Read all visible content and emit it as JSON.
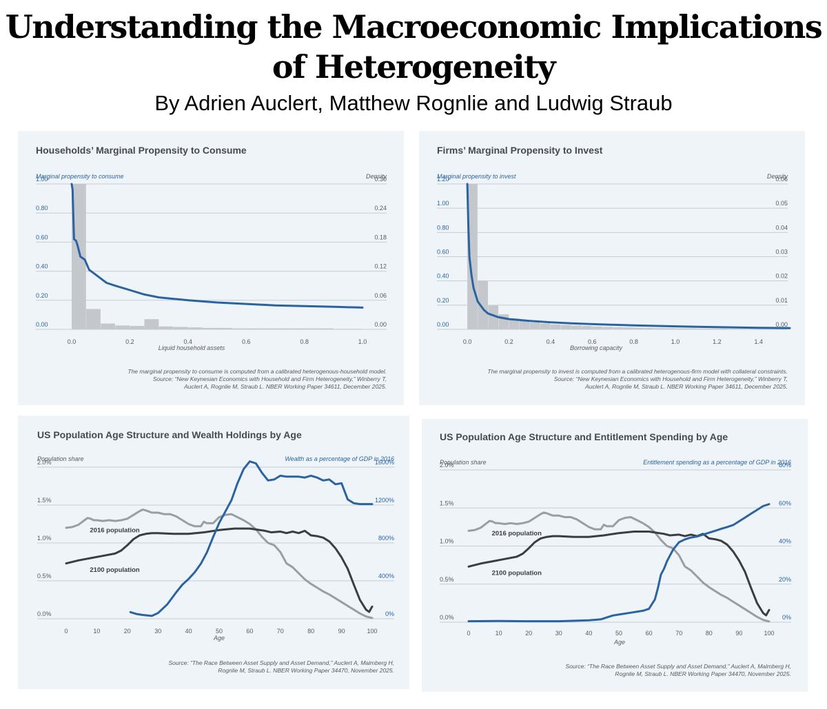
{
  "header": {
    "title": "Understanding the Macroeconomic Implications of Heterogeneity",
    "subtitle": "By Adrien Auclert, Matthew Rognlie and Ludwig Straub"
  },
  "colors": {
    "blue": "#2a63a0",
    "bar": "#c4c7cc",
    "dark": "#3a3d42",
    "light": "#9a9ea3",
    "grid": "#c5ccd4",
    "text": "#555a60"
  },
  "panels": [
    {
      "title": "Households’ Marginal Propensity to Consume",
      "left_axis_label": "Marginal propensity to consume",
      "right_axis_label": "Density",
      "xlabel": "Liquid household assets",
      "note": "The marginal propensity to consume is computed from a calibrated heterogenous-household model.",
      "source": [
        "Source: “New Keynesian Economics with Household and Firm Heterogeneity,” Winberry T,",
        "Auclert A, Rognlie M, Straub L. NBER Working Paper 34611, December 2025."
      ]
    },
    {
      "title": "Firms’ Marginal Propensity to Invest",
      "left_axis_label": "Marginal propensity to invest",
      "right_axis_label": "Density",
      "xlabel": "Borrowing capacity",
      "note": "The marginal propensity to invest is computed from a calibrated heterogenous-firm model with collateral constraints.",
      "source": [
        "Source: “New Keynesian Economics with Household and Firm Heterogeneity,” Winberry T,",
        "Auclert A, Rognlie M, Straub L. NBER Working Paper 34611, December 2025."
      ]
    },
    {
      "title": "US Population Age Structure and Wealth Holdings by Age",
      "left_axis_label": "Population share",
      "right_axis_label": "Wealth as a percentage of GDP in 2016",
      "xlabel": "Age",
      "note": "",
      "source": [
        "Source: “The Race Between Asset Supply and Asset Demand,” Auclert A, Malmberg H,",
        "Rognlie M, Straub L. NBER Working Paper 34470, November 2025."
      ]
    },
    {
      "title": "US Population Age Structure and Entitlement Spending by Age",
      "left_axis_label": "Population share",
      "right_axis_label": "Entitlement spending as a percentage of GDP in 2016",
      "xlabel": "Age",
      "note": "",
      "source": [
        "Source: “The Race Between Asset Supply and Asset Demand,” Auclert A, Malmberg H,",
        "Rognlie M, Straub L. NBER Working Paper 34470, November 2025."
      ]
    }
  ],
  "chart_data": [
    {
      "type": "bar",
      "title": "Households’ Marginal Propensity to Consume",
      "xlabel": "Liquid household assets",
      "xlim": [
        0,
        1.0
      ],
      "x_ticks": [
        "0.0",
        "0.2",
        "0.4",
        "0.6",
        "0.8",
        "1.0"
      ],
      "y_left": {
        "label": "Marginal propensity to consume",
        "lim": [
          0,
          1.0
        ],
        "ticks": [
          "0.00",
          "0.20",
          "0.40",
          "0.60",
          "0.80",
          "1.00"
        ]
      },
      "y_right": {
        "label": "Density",
        "lim": [
          0,
          0.3
        ],
        "ticks": [
          "0.00",
          "0.06",
          "0.12",
          "0.18",
          "0.24",
          "0.30"
        ]
      },
      "grid": true,
      "histogram": {
        "name": "Density",
        "bin_width": 0.05,
        "values": [
          0.3,
          0.042,
          0.012,
          0.008,
          0.007,
          0.021,
          0.006,
          0.005,
          0.004,
          0.003,
          0.003,
          0.002,
          0.002,
          0.002,
          0.002,
          0.002,
          0.002,
          0.002,
          0.001,
          0.001
        ]
      },
      "series": [
        {
          "name": "Marginal propensity to consume",
          "x": [
            0.0,
            0.003,
            0.008,
            0.015,
            0.02,
            0.03,
            0.045,
            0.06,
            0.08,
            0.1,
            0.12,
            0.15,
            0.2,
            0.25,
            0.3,
            0.35,
            0.4,
            0.5,
            0.6,
            0.7,
            0.8,
            0.9,
            1.0
          ],
          "y": [
            1.0,
            0.96,
            0.62,
            0.61,
            0.58,
            0.5,
            0.48,
            0.41,
            0.38,
            0.35,
            0.32,
            0.3,
            0.27,
            0.24,
            0.22,
            0.21,
            0.2,
            0.185,
            0.175,
            0.165,
            0.16,
            0.155,
            0.15
          ]
        }
      ]
    },
    {
      "type": "bar",
      "title": "Firms’ Marginal Propensity to Invest",
      "xlabel": "Borrowing capacity",
      "xlim": [
        -0.05,
        1.55
      ],
      "x_ticks": [
        "0.0",
        "0.2",
        "0.4",
        "0.6",
        "0.8",
        "1.0",
        "1.2",
        "1.4"
      ],
      "y_left": {
        "label": "Marginal propensity to invest",
        "lim": [
          0,
          1.2
        ],
        "ticks": [
          "0.00",
          "0.20",
          "0.40",
          "0.60",
          "0.80",
          "1.00",
          "1.20"
        ]
      },
      "y_right": {
        "label": "Density",
        "lim": [
          0,
          0.06
        ],
        "ticks": [
          "0.00",
          "0.01",
          "0.02",
          "0.03",
          "0.04",
          "0.05",
          "0.06"
        ]
      },
      "grid": true,
      "histogram": {
        "name": "Density",
        "bin_width": 0.05,
        "values": [
          0.06,
          0.02,
          0.0098,
          0.0062,
          0.0045,
          0.0035,
          0.0028,
          0.0024,
          0.002,
          0.0018,
          0.0016,
          0.0014,
          0.0012,
          0.001,
          0.0009,
          0.0008,
          0.0007,
          0.0006,
          0.0005,
          0.0005,
          0.0004,
          0.0004,
          0.0003,
          0.0003,
          0.0003,
          0.0002,
          0.0002,
          0.0002,
          0.0002,
          0.0002,
          0.0001
        ]
      },
      "series": [
        {
          "name": "Marginal propensity to invest",
          "x": [
            0.0,
            0.005,
            0.01,
            0.02,
            0.03,
            0.05,
            0.08,
            0.1,
            0.15,
            0.2,
            0.3,
            0.4,
            0.5,
            0.6,
            0.8,
            1.0,
            1.2,
            1.4,
            1.55
          ],
          "y": [
            1.2,
            0.85,
            0.6,
            0.45,
            0.34,
            0.23,
            0.16,
            0.13,
            0.1,
            0.085,
            0.07,
            0.058,
            0.05,
            0.043,
            0.033,
            0.025,
            0.018,
            0.013,
            0.01
          ]
        }
      ]
    },
    {
      "type": "line",
      "title": "US Population Age Structure and Wealth Holdings by Age",
      "xlabel": "Age",
      "xlim": [
        0,
        100
      ],
      "x_ticks": [
        "0",
        "10",
        "20",
        "30",
        "40",
        "50",
        "60",
        "70",
        "80",
        "90",
        "100"
      ],
      "y_left": {
        "label": "Population share",
        "lim": [
          0,
          2.0
        ],
        "ticks": [
          "0.0%",
          "0.5%",
          "1.0%",
          "1.5%",
          "2.0%"
        ]
      },
      "y_right": {
        "label": "Wealth as a percentage of GDP in 2016",
        "lim": [
          0,
          1600
        ],
        "ticks": [
          "0%",
          "400%",
          "800%",
          "1200%",
          "1600%"
        ]
      },
      "grid": true,
      "annotations": [
        "2016 population",
        "2100 population"
      ],
      "series": [
        {
          "name": "2016 population",
          "axis": "left",
          "x": [
            0,
            2,
            4,
            6,
            7,
            8,
            9,
            10,
            12,
            14,
            16,
            18,
            20,
            22,
            24,
            25,
            26,
            28,
            30,
            32,
            34,
            36,
            38,
            40,
            42,
            44,
            45,
            46,
            48,
            50,
            52,
            54,
            56,
            58,
            60,
            62,
            64,
            66,
            68,
            70,
            72,
            74,
            76,
            78,
            80,
            82,
            84,
            86,
            88,
            90,
            92,
            94,
            96,
            98,
            100
          ],
          "y": [
            1.2,
            1.21,
            1.24,
            1.3,
            1.33,
            1.32,
            1.3,
            1.3,
            1.29,
            1.3,
            1.29,
            1.3,
            1.32,
            1.37,
            1.42,
            1.44,
            1.43,
            1.4,
            1.4,
            1.38,
            1.38,
            1.35,
            1.3,
            1.25,
            1.22,
            1.22,
            1.28,
            1.26,
            1.26,
            1.34,
            1.37,
            1.38,
            1.34,
            1.3,
            1.25,
            1.18,
            1.08,
            1.0,
            0.97,
            0.88,
            0.73,
            0.68,
            0.6,
            0.52,
            0.46,
            0.41,
            0.36,
            0.32,
            0.27,
            0.22,
            0.17,
            0.12,
            0.07,
            0.03,
            0.01
          ]
        },
        {
          "name": "2100 population",
          "axis": "left",
          "x": [
            0,
            4,
            8,
            12,
            16,
            18,
            20,
            22,
            24,
            26,
            28,
            30,
            35,
            40,
            45,
            50,
            55,
            60,
            65,
            67,
            70,
            72,
            74,
            76,
            78,
            80,
            82,
            84,
            86,
            88,
            90,
            92,
            94,
            96,
            98,
            99,
            100
          ],
          "y": [
            0.73,
            0.77,
            0.8,
            0.83,
            0.86,
            0.9,
            0.97,
            1.05,
            1.1,
            1.12,
            1.13,
            1.13,
            1.12,
            1.12,
            1.14,
            1.17,
            1.19,
            1.19,
            1.16,
            1.14,
            1.15,
            1.13,
            1.15,
            1.13,
            1.16,
            1.1,
            1.09,
            1.07,
            1.02,
            0.93,
            0.81,
            0.66,
            0.45,
            0.25,
            0.12,
            0.09,
            0.16
          ]
        },
        {
          "name": "Wealth",
          "axis": "right",
          "x": [
            21,
            23,
            25,
            28,
            30,
            33,
            36,
            38,
            40,
            42,
            44,
            46,
            48,
            50,
            52,
            54,
            56,
            58,
            60,
            62,
            64,
            66,
            68,
            70,
            72,
            74,
            76,
            78,
            80,
            82,
            84,
            86,
            88,
            90,
            92,
            94,
            96,
            98,
            100
          ],
          "y": [
            70,
            50,
            40,
            30,
            60,
            150,
            280,
            360,
            420,
            490,
            580,
            700,
            860,
            1010,
            1130,
            1250,
            1430,
            1580,
            1660,
            1640,
            1540,
            1460,
            1470,
            1510,
            1500,
            1500,
            1500,
            1490,
            1510,
            1490,
            1460,
            1470,
            1420,
            1430,
            1260,
            1220,
            1210,
            1210,
            1210
          ]
        }
      ]
    },
    {
      "type": "line",
      "title": "US Population Age Structure and Entitlement Spending by Age",
      "xlabel": "Age",
      "xlim": [
        0,
        100
      ],
      "x_ticks": [
        "0",
        "10",
        "20",
        "30",
        "40",
        "50",
        "60",
        "70",
        "80",
        "90",
        "100"
      ],
      "y_left": {
        "label": "Population share",
        "lim": [
          0,
          2.0
        ],
        "ticks": [
          "0.0%",
          "0.5%",
          "1.0%",
          "1.5%",
          "2.0%"
        ]
      },
      "y_right": {
        "label": "Entitlement spending as a percentage of GDP in 2016",
        "lim": [
          0,
          80
        ],
        "ticks": [
          "0%",
          "20%",
          "40%",
          "60%",
          "80%"
        ]
      },
      "grid": true,
      "annotations": [
        "2016 population",
        "2100 population"
      ],
      "series": [
        {
          "name": "2016 population",
          "axis": "left",
          "x": [
            0,
            2,
            4,
            6,
            7,
            8,
            9,
            10,
            12,
            14,
            16,
            18,
            20,
            22,
            24,
            25,
            26,
            28,
            30,
            32,
            34,
            36,
            38,
            40,
            42,
            44,
            45,
            46,
            48,
            50,
            52,
            54,
            56,
            58,
            60,
            62,
            64,
            66,
            68,
            70,
            72,
            74,
            76,
            78,
            80,
            82,
            84,
            86,
            88,
            90,
            92,
            94,
            96,
            98,
            100
          ],
          "y": [
            1.2,
            1.21,
            1.24,
            1.3,
            1.33,
            1.32,
            1.3,
            1.3,
            1.29,
            1.3,
            1.29,
            1.3,
            1.32,
            1.37,
            1.42,
            1.44,
            1.43,
            1.4,
            1.4,
            1.38,
            1.38,
            1.35,
            1.3,
            1.25,
            1.22,
            1.22,
            1.28,
            1.26,
            1.26,
            1.34,
            1.37,
            1.38,
            1.34,
            1.3,
            1.25,
            1.18,
            1.08,
            1.0,
            0.97,
            0.88,
            0.73,
            0.68,
            0.6,
            0.52,
            0.46,
            0.41,
            0.36,
            0.32,
            0.27,
            0.22,
            0.17,
            0.12,
            0.07,
            0.03,
            0.01
          ]
        },
        {
          "name": "2100 population",
          "axis": "left",
          "x": [
            0,
            4,
            8,
            12,
            16,
            18,
            20,
            22,
            24,
            26,
            28,
            30,
            35,
            40,
            45,
            50,
            55,
            60,
            65,
            67,
            70,
            72,
            74,
            76,
            78,
            80,
            82,
            84,
            86,
            88,
            90,
            92,
            94,
            96,
            98,
            99,
            100
          ],
          "y": [
            0.73,
            0.77,
            0.8,
            0.83,
            0.86,
            0.9,
            0.97,
            1.05,
            1.1,
            1.12,
            1.13,
            1.13,
            1.12,
            1.12,
            1.14,
            1.17,
            1.19,
            1.19,
            1.16,
            1.14,
            1.15,
            1.13,
            1.15,
            1.13,
            1.16,
            1.1,
            1.09,
            1.07,
            1.02,
            0.93,
            0.81,
            0.66,
            0.45,
            0.25,
            0.12,
            0.09,
            0.16
          ]
        },
        {
          "name": "Entitlement spending",
          "axis": "right",
          "x": [
            0,
            10,
            20,
            30,
            40,
            44,
            46,
            48,
            50,
            54,
            58,
            60,
            62,
            63,
            64,
            65,
            66,
            67,
            68,
            70,
            72,
            74,
            76,
            78,
            80,
            82,
            84,
            86,
            88,
            90,
            92,
            94,
            96,
            98,
            100
          ],
          "y": [
            0.5,
            0.6,
            0.5,
            0.5,
            1,
            1.5,
            2.5,
            3.5,
            4,
            5,
            6,
            7,
            12,
            18,
            25,
            28,
            32,
            35,
            38,
            42,
            43.5,
            44.5,
            45,
            46,
            47,
            48,
            49,
            50,
            51,
            53,
            55,
            57,
            59,
            61,
            62
          ]
        }
      ]
    }
  ]
}
